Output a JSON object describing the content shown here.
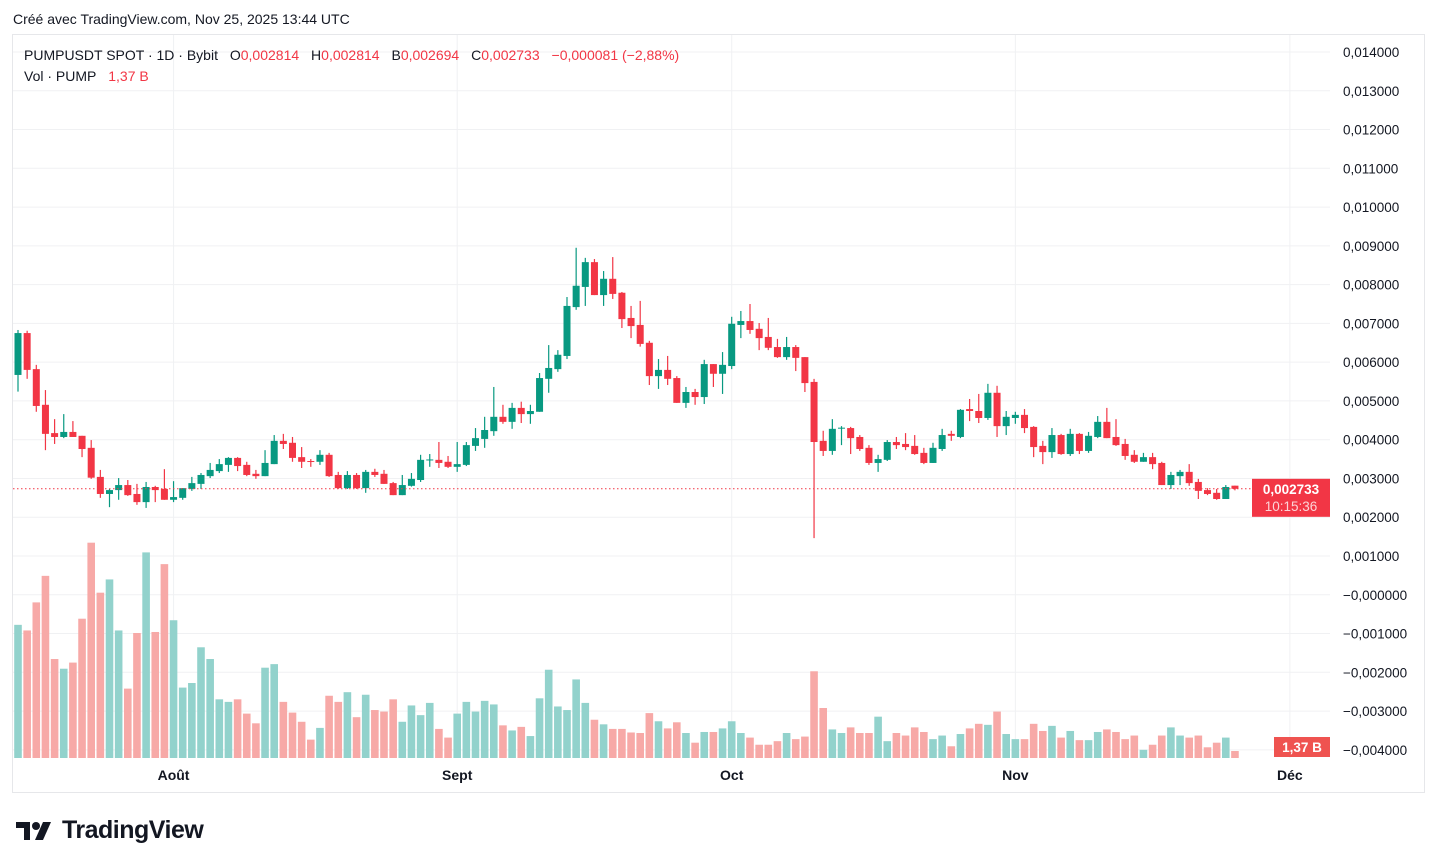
{
  "credit": "Créé avec TradingView.com, Nov 25, 2025 13:44 UTC",
  "legend": {
    "symbol": "PUMPUSDT SPOT · 1D · Bybit",
    "open_label": "O",
    "open": "0,002814",
    "high_label": "H",
    "high": "0,002814",
    "low_label": "B",
    "low": "0,002694",
    "close_label": "C",
    "close": "0,002733",
    "change": "−0,000081 (−2,88%)",
    "vol_label": "Vol · PUMP",
    "vol_value": "1,37 B"
  },
  "badges": {
    "last_price": "0,002733",
    "countdown": "10:15:36",
    "last_volume": "1,37 B"
  },
  "footer": {
    "brand": "TradingView"
  },
  "colors": {
    "up": "#089981",
    "down": "#F23645",
    "vol_up": "#92D2CC",
    "vol_down": "#F7A9A7",
    "grid": "#F0F1F3",
    "price_badge": "#F23645",
    "vol_badge": "#EF5350"
  },
  "chart_data": {
    "type": "candlestick",
    "title": "",
    "y_axis_ticks": [
      "0,014000",
      "0,013000",
      "0,012000",
      "0,011000",
      "0,010000",
      "0,009000",
      "0,008000",
      "0,007000",
      "0,006000",
      "0,005000",
      "0,004000",
      "0,003000",
      "0,002000",
      "0,001000",
      "−0,000000",
      "−0,001000",
      "−0,002000",
      "−0,003000",
      "−0,004000"
    ],
    "x_axis_ticks": [
      {
        "label": "Août",
        "date": "2025-08-01"
      },
      {
        "label": "Sept",
        "date": "2025-09-01"
      },
      {
        "label": "Oct",
        "date": "2025-10-01"
      },
      {
        "label": "Nov",
        "date": "2025-11-01"
      },
      {
        "label": "Déc",
        "date": "2025-12-01"
      }
    ],
    "price_ylim": [
      -0.004,
      0.014
    ],
    "volume_unit": "B",
    "grid": true,
    "columns": [
      "date",
      "open",
      "high",
      "low",
      "close",
      "volume"
    ],
    "candles": [
      [
        "2025-07-15",
        0.00567,
        0.00683,
        0.00524,
        0.00675,
        26.1
      ],
      [
        "2025-07-16",
        0.00675,
        0.00681,
        0.00557,
        0.0058,
        25.0
      ],
      [
        "2025-07-17",
        0.00582,
        0.00593,
        0.00472,
        0.00487,
        30.5
      ],
      [
        "2025-07-18",
        0.0049,
        0.00528,
        0.00373,
        0.00415,
        35.7
      ],
      [
        "2025-07-19",
        0.00417,
        0.00453,
        0.00389,
        0.00407,
        19.4
      ],
      [
        "2025-07-20",
        0.00407,
        0.00466,
        0.00404,
        0.0042,
        17.5
      ],
      [
        "2025-07-21",
        0.0042,
        0.00448,
        0.00407,
        0.00407,
        18.7
      ],
      [
        "2025-07-22",
        0.0041,
        0.0041,
        0.00355,
        0.00376,
        27.3
      ],
      [
        "2025-07-23",
        0.00379,
        0.00399,
        0.00299,
        0.00302,
        42.2
      ],
      [
        "2025-07-24",
        0.00304,
        0.00322,
        0.0025,
        0.0026,
        32.4
      ],
      [
        "2025-07-25",
        0.0026,
        0.00273,
        0.00226,
        0.0027,
        35.0
      ],
      [
        "2025-07-26",
        0.0027,
        0.00301,
        0.00245,
        0.00283,
        25.0
      ],
      [
        "2025-07-27",
        0.00283,
        0.00296,
        0.00255,
        0.00257,
        13.6
      ],
      [
        "2025-07-28",
        0.0026,
        0.00286,
        0.00232,
        0.00239,
        24.5
      ],
      [
        "2025-07-29",
        0.00239,
        0.00291,
        0.00224,
        0.00278,
        40.3
      ],
      [
        "2025-07-30",
        0.00278,
        0.00281,
        0.00239,
        0.0027,
        24.7
      ],
      [
        "2025-07-31",
        0.00273,
        0.00324,
        0.00245,
        0.00245,
        38.0
      ],
      [
        "2025-08-01",
        0.00245,
        0.00293,
        0.00239,
        0.00252,
        27.0
      ],
      [
        "2025-08-02",
        0.0025,
        0.00275,
        0.00245,
        0.00275,
        13.8
      ],
      [
        "2025-08-03",
        0.00273,
        0.00304,
        0.00268,
        0.00288,
        14.7
      ],
      [
        "2025-08-04",
        0.00286,
        0.00314,
        0.00273,
        0.00309,
        21.7
      ],
      [
        "2025-08-05",
        0.00306,
        0.0034,
        0.00301,
        0.00322,
        19.4
      ],
      [
        "2025-08-06",
        0.00319,
        0.0035,
        0.00314,
        0.00337,
        11.5
      ],
      [
        "2025-08-07",
        0.00335,
        0.00355,
        0.00317,
        0.00353,
        11.0
      ],
      [
        "2025-08-08",
        0.00353,
        0.00355,
        0.00319,
        0.00332,
        11.5
      ],
      [
        "2025-08-09",
        0.00335,
        0.00343,
        0.00306,
        0.00309,
        8.7
      ],
      [
        "2025-08-10",
        0.00312,
        0.00322,
        0.00299,
        0.00306,
        6.8
      ],
      [
        "2025-08-11",
        0.00306,
        0.00373,
        0.00306,
        0.0034,
        17.7
      ],
      [
        "2025-08-12",
        0.00337,
        0.00412,
        0.00337,
        0.00397,
        18.4
      ],
      [
        "2025-08-13",
        0.00397,
        0.00415,
        0.00376,
        0.00389,
        11.0
      ],
      [
        "2025-08-14",
        0.00392,
        0.00407,
        0.00343,
        0.00353,
        8.9
      ],
      [
        "2025-08-15",
        0.00355,
        0.00381,
        0.00327,
        0.00343,
        7.1
      ],
      [
        "2025-08-16",
        0.00345,
        0.0035,
        0.0033,
        0.00343,
        3.6
      ],
      [
        "2025-08-17",
        0.00343,
        0.00373,
        0.00335,
        0.00361,
        5.9
      ],
      [
        "2025-08-18",
        0.00361,
        0.00366,
        0.00304,
        0.00306,
        12.2
      ],
      [
        "2025-08-19",
        0.00309,
        0.00317,
        0.00273,
        0.00275,
        11.0
      ],
      [
        "2025-08-20",
        0.00275,
        0.00319,
        0.00273,
        0.00309,
        12.9
      ],
      [
        "2025-08-21",
        0.00309,
        0.00314,
        0.00273,
        0.00275,
        8.0
      ],
      [
        "2025-08-22",
        0.00275,
        0.00322,
        0.00263,
        0.00317,
        12.4
      ],
      [
        "2025-08-23",
        0.00317,
        0.00325,
        0.00304,
        0.00309,
        9.4
      ],
      [
        "2025-08-24",
        0.00312,
        0.00322,
        0.00286,
        0.00286,
        9.1
      ],
      [
        "2025-08-25",
        0.00288,
        0.00291,
        0.00257,
        0.00257,
        11.5
      ],
      [
        "2025-08-26",
        0.00257,
        0.00309,
        0.00257,
        0.00283,
        7.1
      ],
      [
        "2025-08-27",
        0.00281,
        0.00314,
        0.00279,
        0.00299,
        10.3
      ],
      [
        "2025-08-28",
        0.00296,
        0.00361,
        0.00291,
        0.00348,
        8.4
      ],
      [
        "2025-08-29",
        0.00348,
        0.00363,
        0.0033,
        0.00349,
        10.8
      ],
      [
        "2025-08-30",
        0.00348,
        0.00394,
        0.00327,
        0.0034,
        5.7
      ],
      [
        "2025-08-31",
        0.00343,
        0.00358,
        0.00327,
        0.0033,
        4.0
      ],
      [
        "2025-09-01",
        0.0033,
        0.00394,
        0.00317,
        0.00337,
        8.7
      ],
      [
        "2025-09-02",
        0.00335,
        0.00394,
        0.00332,
        0.00386,
        11.0
      ],
      [
        "2025-09-03",
        0.00384,
        0.0043,
        0.00371,
        0.00404,
        9.1
      ],
      [
        "2025-09-04",
        0.00402,
        0.00459,
        0.00379,
        0.00425,
        11.2
      ],
      [
        "2025-09-05",
        0.00422,
        0.00536,
        0.0041,
        0.00459,
        10.5
      ],
      [
        "2025-09-06",
        0.00459,
        0.0049,
        0.00441,
        0.00446,
        6.4
      ],
      [
        "2025-09-07",
        0.00446,
        0.00495,
        0.00428,
        0.00482,
        5.4
      ],
      [
        "2025-09-08",
        0.00482,
        0.00498,
        0.00443,
        0.00466,
        6.1
      ],
      [
        "2025-09-09",
        0.00466,
        0.0049,
        0.00441,
        0.00474,
        4.3
      ],
      [
        "2025-09-10",
        0.00472,
        0.00572,
        0.00472,
        0.00559,
        11.7
      ],
      [
        "2025-09-11",
        0.00557,
        0.00644,
        0.00521,
        0.00585,
        17.3
      ],
      [
        "2025-09-12",
        0.00582,
        0.00631,
        0.00575,
        0.00619,
        10.1
      ],
      [
        "2025-09-13",
        0.00616,
        0.00768,
        0.00608,
        0.00745,
        9.4
      ],
      [
        "2025-09-14",
        0.00742,
        0.00895,
        0.00735,
        0.00797,
        15.4
      ],
      [
        "2025-09-15",
        0.00794,
        0.00869,
        0.00745,
        0.00858,
        10.8
      ],
      [
        "2025-09-16",
        0.00858,
        0.00866,
        0.00773,
        0.00773,
        7.5
      ],
      [
        "2025-09-17",
        0.00773,
        0.00835,
        0.00745,
        0.00815,
        6.6
      ],
      [
        "2025-09-18",
        0.00815,
        0.00871,
        0.00763,
        0.00776,
        5.7
      ],
      [
        "2025-09-19",
        0.00779,
        0.00781,
        0.00688,
        0.00711,
        5.7
      ],
      [
        "2025-09-20",
        0.00714,
        0.00745,
        0.00662,
        0.00693,
        5.0
      ],
      [
        "2025-09-21",
        0.00696,
        0.00758,
        0.0064,
        0.00647,
        4.9
      ],
      [
        "2025-09-22",
        0.0065,
        0.00655,
        0.00541,
        0.00564,
        8.8
      ],
      [
        "2025-09-23",
        0.00564,
        0.00608,
        0.00531,
        0.0058,
        7.2
      ],
      [
        "2025-09-24",
        0.0058,
        0.00616,
        0.00541,
        0.00557,
        5.8
      ],
      [
        "2025-09-25",
        0.00559,
        0.00564,
        0.00495,
        0.00495,
        7.0
      ],
      [
        "2025-09-26",
        0.00495,
        0.00536,
        0.00482,
        0.00523,
        4.9
      ],
      [
        "2025-09-27",
        0.00523,
        0.00531,
        0.0049,
        0.0051,
        3.0
      ],
      [
        "2025-09-28",
        0.0051,
        0.00606,
        0.00492,
        0.00595,
        5.1
      ],
      [
        "2025-09-29",
        0.00595,
        0.00595,
        0.00536,
        0.0057,
        5.1
      ],
      [
        "2025-09-30",
        0.0057,
        0.00626,
        0.00518,
        0.00593,
        5.8
      ],
      [
        "2025-10-01",
        0.0059,
        0.00717,
        0.00582,
        0.00699,
        7.2
      ],
      [
        "2025-10-02",
        0.00696,
        0.00732,
        0.00662,
        0.00706,
        4.9
      ],
      [
        "2025-10-03",
        0.00706,
        0.0075,
        0.00673,
        0.00683,
        4.0
      ],
      [
        "2025-10-04",
        0.00686,
        0.00701,
        0.00631,
        0.00662,
        2.6
      ],
      [
        "2025-10-05",
        0.00665,
        0.00714,
        0.00631,
        0.00637,
        2.6
      ],
      [
        "2025-10-06",
        0.00639,
        0.0066,
        0.00611,
        0.00613,
        3.3
      ],
      [
        "2025-10-07",
        0.00613,
        0.00665,
        0.00606,
        0.00639,
        4.9
      ],
      [
        "2025-10-08",
        0.00639,
        0.00644,
        0.00577,
        0.00611,
        3.7
      ],
      [
        "2025-10-09",
        0.00613,
        0.00613,
        0.00523,
        0.00546,
        4.2
      ],
      [
        "2025-10-10",
        0.00549,
        0.00557,
        0.00146,
        0.00394,
        17.0
      ],
      [
        "2025-10-11",
        0.00397,
        0.00423,
        0.00358,
        0.00371,
        9.8
      ],
      [
        "2025-10-12",
        0.00371,
        0.00453,
        0.00361,
        0.00428,
        5.6
      ],
      [
        "2025-10-13",
        0.0043,
        0.00435,
        0.00386,
        0.00431,
        4.9
      ],
      [
        "2025-10-14",
        0.0043,
        0.00433,
        0.00363,
        0.00404,
        6.0
      ],
      [
        "2025-10-15",
        0.00407,
        0.00412,
        0.00371,
        0.00376,
        4.9
      ],
      [
        "2025-10-16",
        0.00379,
        0.00386,
        0.00335,
        0.0034,
        4.9
      ],
      [
        "2025-10-17",
        0.0034,
        0.00361,
        0.00317,
        0.0035,
        8.1
      ],
      [
        "2025-10-18",
        0.00348,
        0.00399,
        0.00345,
        0.00394,
        3.3
      ],
      [
        "2025-10-19",
        0.00394,
        0.00407,
        0.00376,
        0.00386,
        4.9
      ],
      [
        "2025-10-20",
        0.00389,
        0.00417,
        0.00373,
        0.00381,
        4.4
      ],
      [
        "2025-10-21",
        0.00384,
        0.00412,
        0.00361,
        0.00363,
        6.0
      ],
      [
        "2025-10-22",
        0.00366,
        0.00379,
        0.00337,
        0.0034,
        5.1
      ],
      [
        "2025-10-23",
        0.0034,
        0.00392,
        0.0034,
        0.00379,
        3.7
      ],
      [
        "2025-10-24",
        0.00376,
        0.00428,
        0.00371,
        0.00412,
        4.4
      ],
      [
        "2025-10-25",
        0.00415,
        0.00423,
        0.00397,
        0.0041,
        2.3
      ],
      [
        "2025-10-26",
        0.00407,
        0.00479,
        0.00404,
        0.00477,
        4.7
      ],
      [
        "2025-10-27",
        0.00479,
        0.00505,
        0.00448,
        0.00474,
        5.8
      ],
      [
        "2025-10-28",
        0.00474,
        0.00518,
        0.00443,
        0.00456,
        6.7
      ],
      [
        "2025-10-29",
        0.00456,
        0.00544,
        0.00451,
        0.00521,
        6.5
      ],
      [
        "2025-10-30",
        0.00521,
        0.00539,
        0.00407,
        0.00435,
        9.1
      ],
      [
        "2025-10-31",
        0.00435,
        0.00474,
        0.00412,
        0.00459,
        4.7
      ],
      [
        "2025-11-01",
        0.00456,
        0.00472,
        0.00441,
        0.00464,
        3.7
      ],
      [
        "2025-11-02",
        0.00464,
        0.00479,
        0.00417,
        0.0043,
        3.7
      ],
      [
        "2025-11-03",
        0.00433,
        0.00435,
        0.00355,
        0.00381,
        6.7
      ],
      [
        "2025-11-04",
        0.00384,
        0.00397,
        0.00337,
        0.00368,
        5.3
      ],
      [
        "2025-11-05",
        0.00368,
        0.0043,
        0.00353,
        0.00412,
        6.3
      ],
      [
        "2025-11-06",
        0.00412,
        0.00415,
        0.00361,
        0.00363,
        4.0
      ],
      [
        "2025-11-07",
        0.00363,
        0.00428,
        0.00358,
        0.00415,
        5.3
      ],
      [
        "2025-11-08",
        0.00415,
        0.00417,
        0.00363,
        0.00371,
        3.5
      ],
      [
        "2025-11-09",
        0.00371,
        0.0042,
        0.00366,
        0.0041,
        3.5
      ],
      [
        "2025-11-10",
        0.00407,
        0.00461,
        0.00404,
        0.00446,
        5.1
      ],
      [
        "2025-11-11",
        0.00446,
        0.00482,
        0.00404,
        0.00404,
        5.6
      ],
      [
        "2025-11-12",
        0.00407,
        0.00453,
        0.00384,
        0.00386,
        5.1
      ],
      [
        "2025-11-13",
        0.00389,
        0.00402,
        0.00348,
        0.00358,
        3.7
      ],
      [
        "2025-11-14",
        0.00361,
        0.00373,
        0.0034,
        0.00343,
        4.4
      ],
      [
        "2025-11-15",
        0.00343,
        0.00366,
        0.00343,
        0.00355,
        1.6
      ],
      [
        "2025-11-16",
        0.00355,
        0.00366,
        0.00324,
        0.00337,
        2.6
      ],
      [
        "2025-11-17",
        0.0034,
        0.00343,
        0.00283,
        0.00283,
        4.4
      ],
      [
        "2025-11-18",
        0.00283,
        0.00317,
        0.00273,
        0.00309,
        6.0
      ],
      [
        "2025-11-19",
        0.00306,
        0.00322,
        0.00283,
        0.00317,
        4.4
      ],
      [
        "2025-11-20",
        0.00317,
        0.00337,
        0.00281,
        0.00288,
        4.0
      ],
      [
        "2025-11-21",
        0.00291,
        0.00299,
        0.00247,
        0.00268,
        4.4
      ],
      [
        "2025-11-22",
        0.0027,
        0.00275,
        0.00257,
        0.0026,
        2.1
      ],
      [
        "2025-11-23",
        0.00263,
        0.00273,
        0.00245,
        0.00247,
        3.0
      ],
      [
        "2025-11-24",
        0.00247,
        0.00283,
        0.00247,
        0.00278,
        4.0
      ],
      [
        "2025-11-25",
        0.002814,
        0.002814,
        0.002694,
        0.002733,
        1.37
      ]
    ],
    "last_price": 0.002733
  }
}
